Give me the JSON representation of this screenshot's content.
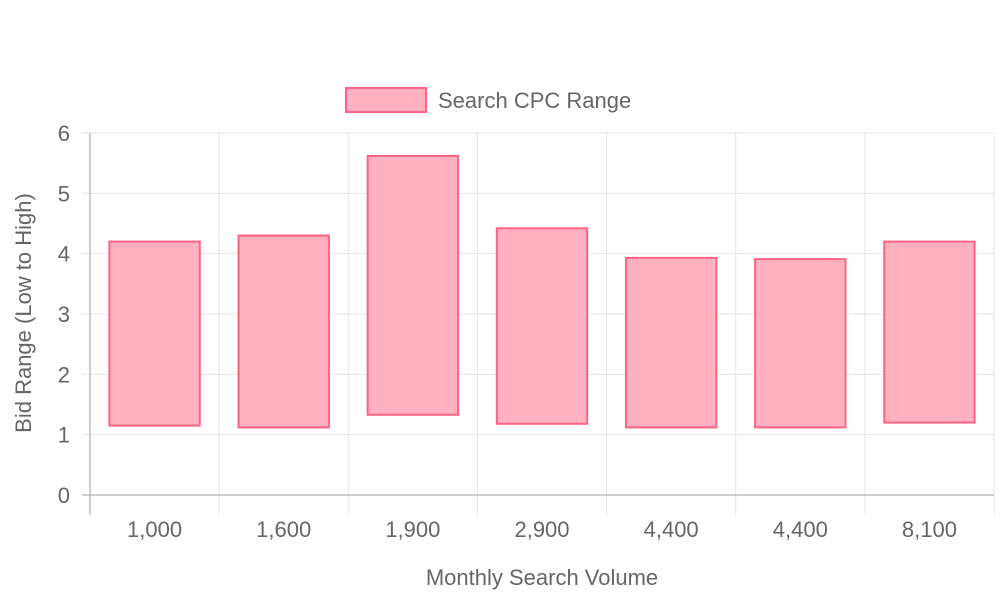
{
  "chart_data": {
    "type": "bar",
    "categories": [
      "1,000",
      "1,600",
      "1,900",
      "2,900",
      "4,400",
      "4,400",
      "8,100"
    ],
    "series": [
      {
        "name": "Search CPC Range",
        "low": [
          1.15,
          1.12,
          1.33,
          1.18,
          1.12,
          1.12,
          1.2
        ],
        "high": [
          4.2,
          4.3,
          5.62,
          4.42,
          3.93,
          3.91,
          4.2
        ],
        "fill": "#ffb1c1",
        "stroke": "#ff6384"
      }
    ],
    "xlabel": "Monthly Search Volume",
    "ylabel": "Bid Range (Low to High)",
    "ylim": [
      0,
      6
    ],
    "yticks": [
      "0",
      "1",
      "2",
      "3",
      "4",
      "5",
      "6"
    ],
    "grid": true,
    "legend": "top-center",
    "colors": {
      "grid": "#e5e5e5",
      "axis": "#bdbdbd",
      "text": "#666666"
    }
  }
}
